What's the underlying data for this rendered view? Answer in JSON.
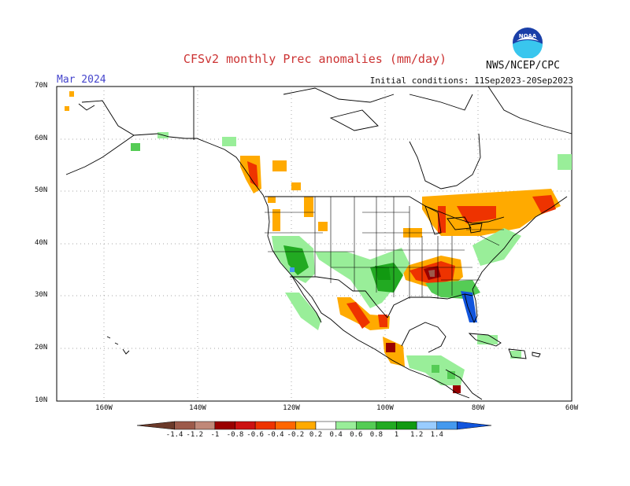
{
  "title": "CFSv2 monthly Prec anomalies (mm/day)",
  "target_month": "Mar 2024",
  "initial_conditions": "Initial conditions: 11Sep2023-20Sep2023",
  "agency": "NWS/NCEP/CPC",
  "logo_text": "NOAA",
  "lat_labels": [
    "70N",
    "60N",
    "50N",
    "40N",
    "30N",
    "20N",
    "10N"
  ],
  "lon_labels": [
    "160W",
    "140W",
    "120W",
    "100W",
    "80W",
    "60W"
  ],
  "colorbar": {
    "labels": [
      "-1.4",
      "-1.2",
      "-1",
      "-0.8",
      "-0.6",
      "-0.4",
      "-0.2",
      "0.2",
      "0.4",
      "0.6",
      "0.8",
      "1",
      "1.2",
      "1.4"
    ],
    "colors": [
      "#6b3a2a",
      "#9c5a4a",
      "#c08878",
      "#990000",
      "#cc1111",
      "#ee3300",
      "#ff6600",
      "#ffaa00",
      "#ffffff",
      "#99ee99",
      "#55cc55",
      "#22aa22",
      "#119911",
      "#99ccff",
      "#4499ee",
      "#1155dd"
    ]
  }
}
